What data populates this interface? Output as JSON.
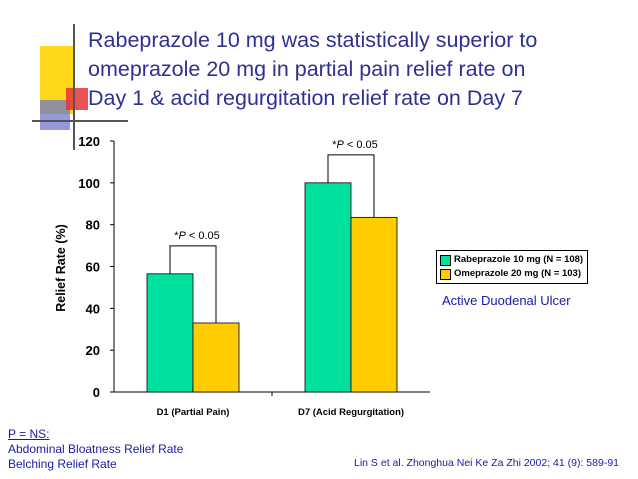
{
  "title_lines": [
    "Rabeprazole 10 mg was statistically superior to",
    "omeprazole 20 mg in partial pain relief rate on",
    "Day 1 & acid regurgitation relief rate on Day 7"
  ],
  "colors": {
    "title": "#2e3192",
    "rabeprazole": "#00e09e",
    "omeprazole": "#ffcc00",
    "deco_yellow": "#ffd81c",
    "deco_blue": "#6f78c9",
    "deco_red": "#e8343a",
    "text_blue": "#1a1aa6"
  },
  "chart_data": {
    "type": "bar",
    "categories": [
      "D1 (Partial Pain)",
      "D7 (Acid Regurgitation)"
    ],
    "series": [
      {
        "name": "Rabeprazole 10 mg (N = 108)",
        "values": [
          56.5,
          100
        ]
      },
      {
        "name": "Omeprazole 20 mg (N = 103)",
        "values": [
          33,
          83.5
        ]
      }
    ],
    "ylabel": "Relief Rate (%)",
    "ylim": [
      0,
      120
    ],
    "yticks": [
      0,
      20,
      40,
      60,
      80,
      100,
      120
    ],
    "grid": false,
    "legend_position": "right",
    "annotations": [
      {
        "category_index": 0,
        "text_p": "P",
        "text_rest": " < 0.05"
      },
      {
        "category_index": 1,
        "text_p": "P",
        "text_rest": " < 0.05"
      }
    ]
  },
  "subtitle": "Active Duodenal Ulcer",
  "notes": {
    "ns_label": "P = NS:",
    "items": [
      "Abdominal Bloatness Relief Rate",
      "Belching Relief Rate"
    ]
  },
  "citation": "Lin S et al.  Zhonghua Nei Ke Za Zhi 2002; 41 (9): 589-91"
}
